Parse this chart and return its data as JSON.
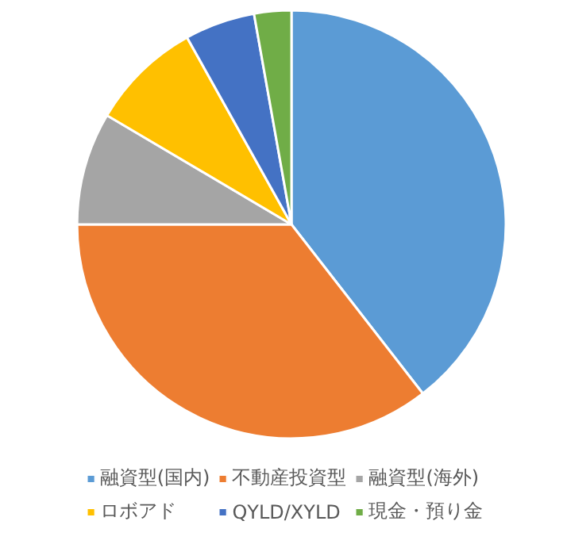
{
  "chart_data": {
    "type": "pie",
    "categories": [
      "融資型(国内)",
      "不動産投資型",
      "融資型(海外)",
      "ロボアド",
      "QYLD/XYLD",
      "現金・預り金"
    ],
    "values": [
      39.5,
      35.5,
      8.5,
      8.4,
      5.3,
      2.8
    ],
    "colors": [
      "#5b9bd5",
      "#ed7d31",
      "#a5a5a5",
      "#ffc000",
      "#4472c4",
      "#70ad47"
    ],
    "legend": "bottom"
  }
}
